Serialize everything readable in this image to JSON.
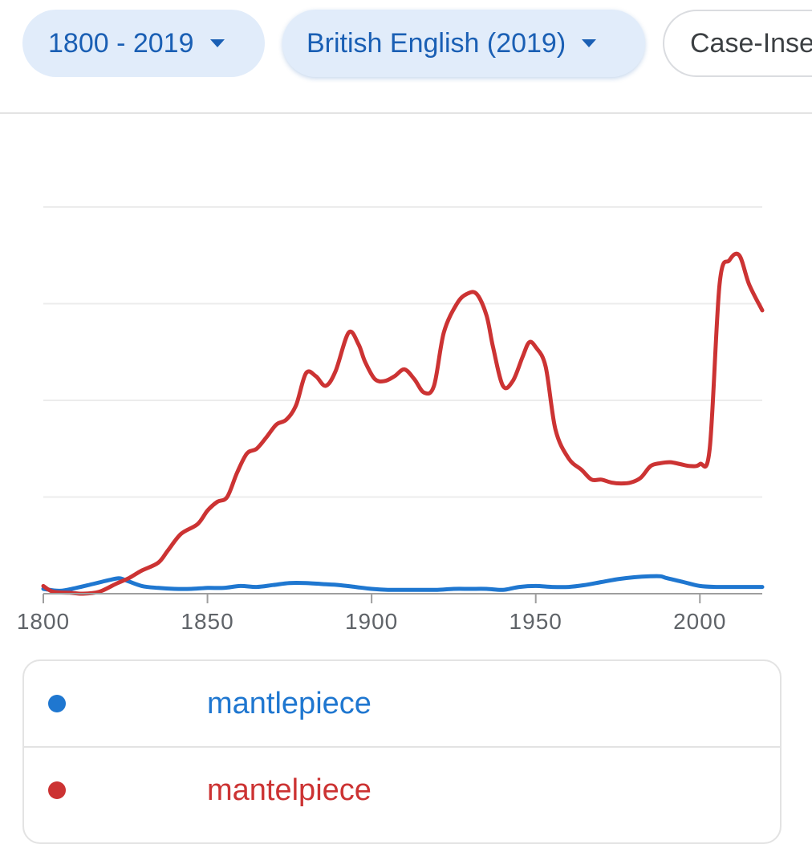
{
  "filters": {
    "range_label": "1800 - 2019",
    "corpus_label": "British English (2019)",
    "case_label": "Case-Insensitive"
  },
  "colors": {
    "chip_bg": "#e1ecfa",
    "chip_text": "#1a5fb4",
    "series_blue": "#1f77d0",
    "series_red": "#cc3333"
  },
  "legend": [
    {
      "term": "mantlepiece",
      "color": "#1f77d0"
    },
    {
      "term": "mantelpiece",
      "color": "#cc3333"
    }
  ],
  "chart_data": {
    "type": "line",
    "title": "",
    "xlabel": "",
    "ylabel": "",
    "xlim": [
      1800,
      2019
    ],
    "ylim": [
      0,
      4
    ],
    "x_ticks": [
      1800,
      1850,
      1900,
      1950,
      2000
    ],
    "y_gridlines": 4,
    "y_tick_labels": "not shown",
    "grid": true,
    "series": [
      {
        "name": "mantlepiece",
        "color": "#1f77d0",
        "points": [
          [
            1800,
            0.05
          ],
          [
            1805,
            0.03
          ],
          [
            1810,
            0.06
          ],
          [
            1815,
            0.1
          ],
          [
            1820,
            0.14
          ],
          [
            1823,
            0.16
          ],
          [
            1825,
            0.14
          ],
          [
            1830,
            0.08
          ],
          [
            1835,
            0.06
          ],
          [
            1840,
            0.05
          ],
          [
            1845,
            0.05
          ],
          [
            1850,
            0.06
          ],
          [
            1855,
            0.06
          ],
          [
            1860,
            0.08
          ],
          [
            1865,
            0.07
          ],
          [
            1870,
            0.09
          ],
          [
            1875,
            0.11
          ],
          [
            1880,
            0.11
          ],
          [
            1885,
            0.1
          ],
          [
            1890,
            0.09
          ],
          [
            1895,
            0.07
          ],
          [
            1900,
            0.05
          ],
          [
            1905,
            0.04
          ],
          [
            1910,
            0.04
          ],
          [
            1915,
            0.04
          ],
          [
            1920,
            0.04
          ],
          [
            1925,
            0.05
          ],
          [
            1930,
            0.05
          ],
          [
            1935,
            0.05
          ],
          [
            1940,
            0.04
          ],
          [
            1945,
            0.07
          ],
          [
            1950,
            0.08
          ],
          [
            1955,
            0.07
          ],
          [
            1960,
            0.07
          ],
          [
            1965,
            0.09
          ],
          [
            1970,
            0.12
          ],
          [
            1975,
            0.15
          ],
          [
            1980,
            0.17
          ],
          [
            1985,
            0.18
          ],
          [
            1988,
            0.18
          ],
          [
            1990,
            0.16
          ],
          [
            1995,
            0.12
          ],
          [
            2000,
            0.08
          ],
          [
            2005,
            0.07
          ],
          [
            2010,
            0.07
          ],
          [
            2015,
            0.07
          ],
          [
            2019,
            0.07
          ]
        ]
      },
      {
        "name": "mantelpiece",
        "color": "#cc3333",
        "points": [
          [
            1800,
            0.08
          ],
          [
            1803,
            0.02
          ],
          [
            1808,
            0.01
          ],
          [
            1812,
            0.0
          ],
          [
            1817,
            0.02
          ],
          [
            1822,
            0.1
          ],
          [
            1826,
            0.16
          ],
          [
            1830,
            0.24
          ],
          [
            1835,
            0.32
          ],
          [
            1838,
            0.45
          ],
          [
            1842,
            0.62
          ],
          [
            1847,
            0.72
          ],
          [
            1850,
            0.86
          ],
          [
            1853,
            0.95
          ],
          [
            1856,
            1.0
          ],
          [
            1859,
            1.25
          ],
          [
            1862,
            1.45
          ],
          [
            1865,
            1.5
          ],
          [
            1868,
            1.62
          ],
          [
            1871,
            1.75
          ],
          [
            1874,
            1.8
          ],
          [
            1877,
            1.95
          ],
          [
            1880,
            2.28
          ],
          [
            1883,
            2.25
          ],
          [
            1886,
            2.15
          ],
          [
            1889,
            2.3
          ],
          [
            1893,
            2.7
          ],
          [
            1896,
            2.58
          ],
          [
            1898,
            2.4
          ],
          [
            1901,
            2.22
          ],
          [
            1904,
            2.2
          ],
          [
            1907,
            2.25
          ],
          [
            1910,
            2.32
          ],
          [
            1913,
            2.22
          ],
          [
            1916,
            2.08
          ],
          [
            1919,
            2.15
          ],
          [
            1922,
            2.7
          ],
          [
            1926,
            3.0
          ],
          [
            1929,
            3.1
          ],
          [
            1932,
            3.1
          ],
          [
            1935,
            2.88
          ],
          [
            1937,
            2.55
          ],
          [
            1940,
            2.15
          ],
          [
            1943,
            2.2
          ],
          [
            1946,
            2.45
          ],
          [
            1948,
            2.6
          ],
          [
            1950,
            2.55
          ],
          [
            1953,
            2.35
          ],
          [
            1956,
            1.7
          ],
          [
            1960,
            1.4
          ],
          [
            1964,
            1.28
          ],
          [
            1967,
            1.18
          ],
          [
            1970,
            1.18
          ],
          [
            1973,
            1.15
          ],
          [
            1976,
            1.14
          ],
          [
            1979,
            1.15
          ],
          [
            1982,
            1.2
          ],
          [
            1985,
            1.32
          ],
          [
            1988,
            1.35
          ],
          [
            1991,
            1.36
          ],
          [
            1994,
            1.34
          ],
          [
            1997,
            1.32
          ],
          [
            2000,
            1.34
          ],
          [
            2003,
            1.5
          ],
          [
            2006,
            3.2
          ],
          [
            2009,
            3.45
          ],
          [
            2012,
            3.5
          ],
          [
            2015,
            3.2
          ],
          [
            2019,
            2.93
          ]
        ]
      }
    ]
  }
}
